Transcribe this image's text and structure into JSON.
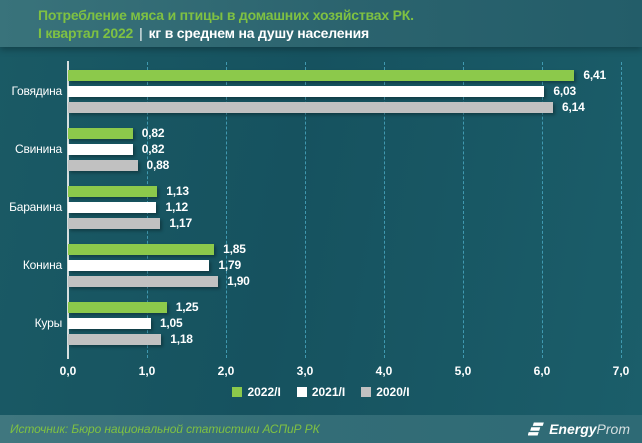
{
  "header": {
    "title": "Потребление мяса и птицы в домашних хозяйствах РК.",
    "period": "I квартал 2022",
    "separator": "|",
    "subtitle": "кг в среднем на душу населения"
  },
  "chart_data": {
    "type": "bar",
    "orientation": "horizontal",
    "title": "Потребление мяса и птицы в домашних хозяйствах РК. I квартал 2022, кг в среднем на душу населения",
    "categories": [
      "Говядина",
      "Свинина",
      "Баранина",
      "Конина",
      "Куры"
    ],
    "series": [
      {
        "name": "2022/I",
        "color": "#8cc94b",
        "values": [
          6.41,
          0.82,
          1.13,
          1.85,
          1.25
        ],
        "labels": [
          "6,41",
          "0,82",
          "1,13",
          "1,85",
          "1,25"
        ]
      },
      {
        "name": "2021/I",
        "color": "#ffffff",
        "values": [
          6.03,
          0.82,
          1.12,
          1.79,
          1.05
        ],
        "labels": [
          "6,03",
          "0,82",
          "1,12",
          "1,79",
          "1,05"
        ]
      },
      {
        "name": "2020/I",
        "color": "#c1c1c1",
        "values": [
          6.14,
          0.88,
          1.17,
          1.9,
          1.18
        ],
        "labels": [
          "6,14",
          "0,88",
          "1,17",
          "1,90",
          "1,18"
        ]
      }
    ],
    "x_axis": {
      "min": 0,
      "max": 7,
      "ticks": [
        "0,0",
        "1,0",
        "2,0",
        "3,0",
        "4,0",
        "5,0",
        "6,0",
        "7,0"
      ]
    },
    "legend": {
      "position": "bottom-center",
      "entries": [
        "2022/I",
        "2021/I",
        "2020/I"
      ]
    },
    "grid": "vertical-dashed"
  },
  "footer": {
    "source": "Источник: Бюро национальной статистики АСПиР РК",
    "logo_bold": "Energy",
    "logo_light": "Prom"
  },
  "colors": {
    "accent_green": "#7fc142",
    "bar_green": "#8cc94b",
    "bar_white": "#ffffff",
    "bar_gray": "#c1c1c1",
    "background_teal": "#16525f",
    "gridline": "#48a6be"
  }
}
